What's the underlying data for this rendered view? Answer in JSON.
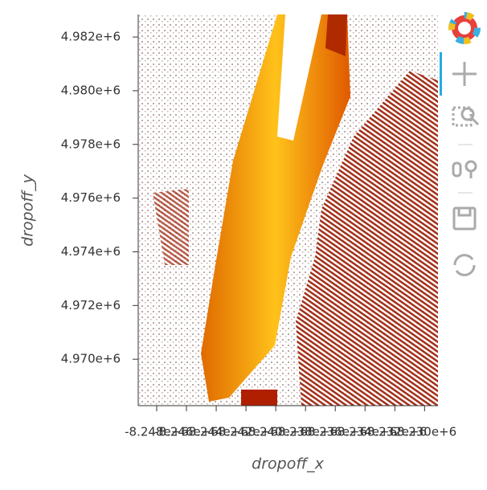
{
  "chart_data": {
    "type": "heatmap",
    "xlabel": "dropoff_x",
    "ylabel": "dropoff_y",
    "xlim": [
      -8249240,
      -8229100
    ],
    "ylim": [
      4968270,
      4982840
    ],
    "xticks": [
      {
        "value": -8248000,
        "label": "-8.248e+6"
      },
      {
        "value": -8246000,
        "label": "-8.246e+6"
      },
      {
        "value": -8244000,
        "label": "-8.244e+6"
      },
      {
        "value": -8242000,
        "label": "-8.242e+6"
      },
      {
        "value": -8240000,
        "label": "-8.240e+6"
      },
      {
        "value": -8238000,
        "label": "-8.238e+6"
      },
      {
        "value": -8236000,
        "label": "-8.236e+6"
      },
      {
        "value": -8234000,
        "label": "-8.234e+6"
      },
      {
        "value": -8232000,
        "label": "-8.232e+6"
      },
      {
        "value": -8230000,
        "label": "-8.230e+6"
      }
    ],
    "yticks": [
      {
        "value": 4970000,
        "label": "4.970e+6"
      },
      {
        "value": 4972000,
        "label": "4.972e+6"
      },
      {
        "value": 4974000,
        "label": "4.974e+6"
      },
      {
        "value": 4976000,
        "label": "4.976e+6"
      },
      {
        "value": 4978000,
        "label": "4.978e+6"
      },
      {
        "value": 4980000,
        "label": "4.980e+6"
      },
      {
        "value": 4982000,
        "label": "4.982e+6"
      }
    ]
  }
}
